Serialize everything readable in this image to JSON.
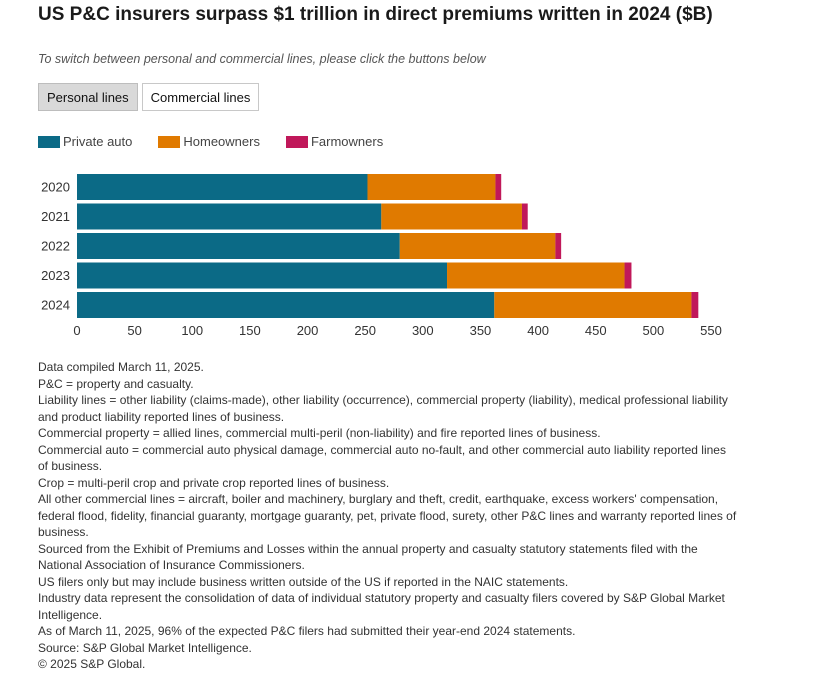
{
  "title": "US P&C insurers surpass $1 trillion in direct premiums written in 2024 ($B)",
  "subtitle": "To switch between personal and commercial lines, please click the buttons below",
  "buttons": {
    "personal": "Personal lines",
    "commercial": "Commercial lines"
  },
  "colors": {
    "private_auto": "#0b6a86",
    "homeowners": "#e07a00",
    "farmowners": "#c0185a"
  },
  "chart_data": {
    "type": "bar",
    "orientation": "horizontal",
    "stacked": true,
    "categories": [
      "2020",
      "2021",
      "2022",
      "2023",
      "2024"
    ],
    "series": [
      {
        "name": "Private auto",
        "values": [
          252,
          264,
          280,
          321,
          362
        ]
      },
      {
        "name": "Homeowners",
        "values": [
          111,
          122,
          135,
          154,
          171
        ]
      },
      {
        "name": "Farmowners",
        "values": [
          5,
          5,
          5,
          6,
          6
        ]
      }
    ],
    "xlim": [
      0,
      550
    ],
    "xticks": [
      "0",
      "50",
      "100",
      "150",
      "200",
      "250",
      "300",
      "350",
      "400",
      "450",
      "500",
      "550"
    ],
    "legend_position": "top-left",
    "grid": false
  },
  "notes": [
    "Data compiled March 11, 2025.",
    "P&C = property and casualty.",
    "Liability lines = other liability (claims-made), other liability (occurrence), commercial property (liability), medical professional liability and product liability reported lines of business.",
    "Commercial property = allied lines, commercial multi-peril (non-liability) and fire reported lines of business.",
    "Commercial auto = commercial auto physical damage, commercial auto no-fault, and other commercial auto liability reported lines of business.",
    "Crop = multi-peril crop and private crop reported lines of business.",
    "All other commercial lines = aircraft, boiler and machinery, burglary and theft, credit, earthquake, excess workers' compensation, federal flood, fidelity, financial guaranty, mortgage guaranty, pet, private flood, surety, other P&C lines and warranty reported lines of business.",
    "Sourced from the Exhibit of Premiums and Losses within the annual property and casualty statutory statements filed with the National Association of Insurance Commissioners.",
    "US filers only but may include business written outside of the US if reported in the NAIC statements.",
    "Industry data represent the consolidation of data of individual statutory property and casualty filers covered by S&P Global Market Intelligence.",
    "As of March 11, 2025, 96% of the expected P&C filers had submitted their year-end 2024 statements.",
    "Source: S&P Global Market Intelligence.",
    "© 2025 S&P Global."
  ]
}
